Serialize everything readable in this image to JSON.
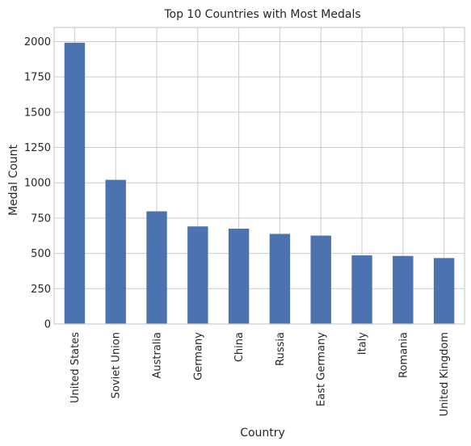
{
  "chart_data": {
    "type": "bar",
    "title": "Top 10 Countries with Most Medals",
    "xlabel": "Country",
    "ylabel": "Medal Count",
    "categories": [
      "United States",
      "Soviet Union",
      "Australia",
      "Germany",
      "China",
      "Russia",
      "East Germany",
      "Italy",
      "Romania",
      "United Kingdom"
    ],
    "values": [
      1992,
      1021,
      798,
      691,
      675,
      638,
      626,
      486,
      482,
      467
    ],
    "ylim": [
      0,
      2100
    ],
    "yticks": [
      0,
      250,
      500,
      750,
      1000,
      1250,
      1500,
      1750,
      2000
    ],
    "grid": true,
    "legend": "none",
    "colors": {
      "bar": "#4c72b0",
      "grid": "#cccccc",
      "frame": "#cccccc",
      "background": "#ffffff"
    }
  }
}
